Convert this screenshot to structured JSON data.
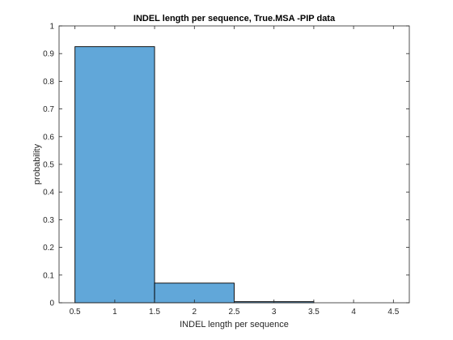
{
  "chart_data": {
    "type": "bar",
    "title": "INDEL length per sequence, True.MSA -PIP data",
    "xlabel": "INDEL length per sequence",
    "ylabel": "probability",
    "bin_edges": [
      0.5,
      1.5,
      2.5,
      3.5
    ],
    "values": [
      0.925,
      0.071,
      0.004
    ],
    "xlim": [
      0.3,
      4.7
    ],
    "ylim": [
      0,
      1
    ],
    "x_ticks": [
      "0.5",
      "1",
      "1.5",
      "2",
      "2.5",
      "3",
      "3.5",
      "4",
      "4.5"
    ],
    "y_ticks": [
      "0",
      "0.1",
      "0.2",
      "0.3",
      "0.4",
      "0.5",
      "0.6",
      "0.7",
      "0.8",
      "0.9",
      "1"
    ],
    "bar_color": "#61a7d9",
    "edge_color": "#000000",
    "grid": false
  }
}
